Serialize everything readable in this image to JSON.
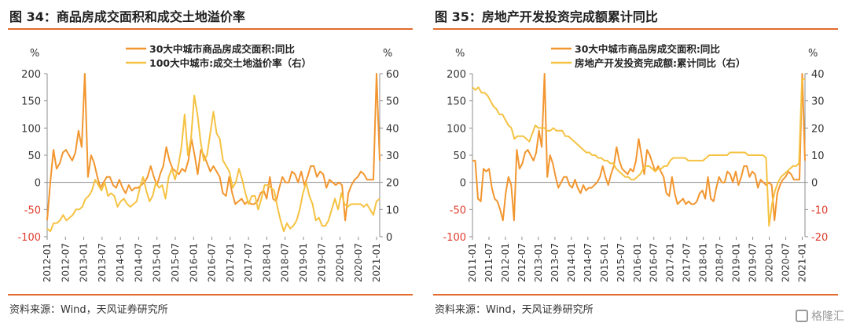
{
  "left": {
    "title": "图 34：商品房成交面积和成交土地溢价率",
    "source": "资料来源：Wind，天风证券研究所"
  },
  "right": {
    "title": "图 35：房地产开发投资完成额累计同比",
    "source": "资料来源：Wind，天风证券研究所"
  },
  "watermark": {
    "text": "格隆汇",
    "icon": "watermark-logo-icon"
  },
  "chart_data": [
    {
      "type": "line",
      "left_unit": "%",
      "right_unit": "%",
      "ylim": [
        -100,
        200
      ],
      "ylim_right": [
        0,
        60
      ],
      "yticks": [
        -100,
        -50,
        0,
        50,
        100,
        150,
        200
      ],
      "yticks_right": [
        0,
        10,
        20,
        30,
        40,
        50,
        60
      ],
      "x_start": "2012-01",
      "x_end": "2021-02",
      "x_tick_labels": [
        "2012-01",
        "2012-07",
        "2013-01",
        "2013-07",
        "2014-01",
        "2014-07",
        "2015-01",
        "2015-07",
        "2016-01",
        "2016-07",
        "2017-01",
        "2017-07",
        "2018-01",
        "2018-07",
        "2019-01",
        "2019-07",
        "2020-01",
        "2020-07",
        "2021-01"
      ],
      "legend_position": "top-center",
      "grid": false,
      "series": [
        {
          "name": "30大中城市商品房成交面积:同比",
          "axis": "left",
          "color": "#f2962f",
          "values": [
            -70,
            0,
            60,
            25,
            35,
            55,
            60,
            50,
            40,
            55,
            95,
            65,
            200,
            10,
            50,
            35,
            10,
            -10,
            0,
            10,
            10,
            -5,
            -10,
            5,
            -10,
            -20,
            -5,
            -15,
            -10,
            -10,
            -5,
            0,
            10,
            30,
            10,
            -5,
            15,
            30,
            65,
            40,
            25,
            20,
            15,
            25,
            20,
            40,
            80,
            50,
            15,
            60,
            50,
            35,
            20,
            30,
            20,
            10,
            -20,
            -25,
            10,
            -20,
            -40,
            -35,
            -30,
            -40,
            -35,
            -40,
            -40,
            -35,
            -20,
            -15,
            -30,
            10,
            -30,
            -35,
            -10,
            10,
            0,
            0,
            20,
            15,
            0,
            20,
            -5,
            10,
            30,
            30,
            10,
            20,
            15,
            -10,
            5,
            0,
            -5,
            0,
            -5,
            -70,
            -20,
            -5,
            5,
            10,
            20,
            15,
            5,
            5,
            5,
            200,
            40
          ]
        },
        {
          "name": "100大中城市:成交土地溢价率（右）",
          "axis": "right",
          "color": "#f5c242",
          "values": [
            3,
            2,
            5,
            5,
            6,
            8,
            6,
            7,
            8,
            10,
            10,
            11,
            14,
            15,
            17,
            21,
            19,
            17,
            20,
            15,
            16,
            15,
            11,
            13,
            14,
            12,
            11,
            12,
            13,
            18,
            22,
            17,
            13,
            15,
            20,
            18,
            19,
            14,
            22,
            25,
            21,
            26,
            33,
            45,
            30,
            36,
            52,
            45,
            35,
            28,
            30,
            38,
            46,
            38,
            36,
            28,
            26,
            24,
            18,
            20,
            25,
            21,
            16,
            12,
            15,
            15,
            10,
            14,
            19,
            19,
            18,
            17,
            11,
            6,
            2,
            5,
            3,
            4,
            6,
            10,
            16,
            20,
            15,
            12,
            6,
            7,
            4,
            4,
            6,
            10,
            14,
            10,
            16,
            12,
            11,
            12,
            12,
            12,
            12,
            11,
            12,
            10,
            8,
            13,
            14
          ]
        }
      ]
    },
    {
      "type": "line",
      "left_unit": "%",
      "right_unit": "%",
      "ylim": [
        -100,
        200
      ],
      "ylim_right": [
        -20,
        40
      ],
      "yticks": [
        -100,
        -50,
        0,
        50,
        100,
        150,
        200
      ],
      "yticks_right": [
        -20,
        -10,
        0,
        10,
        20,
        30,
        40
      ],
      "x_start": "2011-01",
      "x_end": "2021-02",
      "x_tick_labels": [
        "2011-01",
        "2011-07",
        "2012-01",
        "2012-07",
        "2013-01",
        "2013-07",
        "2014-01",
        "2014-07",
        "2015-01",
        "2015-07",
        "2016-01",
        "2016-07",
        "2017-01",
        "2017-07",
        "2018-01",
        "2018-07",
        "2019-01",
        "2019-07",
        "2020-01",
        "2020-07",
        "2021-01"
      ],
      "legend_position": "top-center",
      "grid": false,
      "series": [
        {
          "name": "30大中城市商品房成交面积:同比",
          "axis": "left",
          "color": "#f2962f",
          "values": [
            40,
            40,
            -30,
            -35,
            25,
            20,
            25,
            -10,
            -30,
            -35,
            -50,
            -70,
            -20,
            10,
            -5,
            -70,
            60,
            25,
            35,
            55,
            60,
            50,
            40,
            55,
            95,
            65,
            200,
            10,
            50,
            35,
            10,
            -10,
            0,
            10,
            10,
            -5,
            -10,
            5,
            -10,
            -20,
            -5,
            -15,
            -10,
            -10,
            -5,
            0,
            10,
            30,
            10,
            -5,
            15,
            30,
            65,
            40,
            25,
            20,
            15,
            25,
            20,
            40,
            80,
            50,
            15,
            60,
            50,
            35,
            20,
            30,
            20,
            10,
            -20,
            -25,
            10,
            -20,
            -40,
            -35,
            -30,
            -40,
            -35,
            -40,
            -40,
            -35,
            -20,
            -15,
            -30,
            10,
            -30,
            -35,
            -10,
            10,
            0,
            0,
            20,
            15,
            0,
            20,
            -5,
            10,
            30,
            30,
            10,
            20,
            15,
            -10,
            5,
            0,
            -5,
            0,
            -5,
            -70,
            -20,
            -5,
            5,
            10,
            20,
            15,
            5,
            5,
            5,
            200,
            40
          ]
        },
        {
          "name": "房地产开发投资完成额:累计同比（右）",
          "axis": "right",
          "color": "#f5c242",
          "values": [
            35,
            34,
            35,
            33,
            33,
            32,
            30,
            28,
            27,
            25,
            25,
            23,
            21,
            20,
            16,
            17,
            17,
            17,
            16,
            15,
            18,
            21,
            20,
            20,
            20,
            19,
            19,
            20,
            19,
            19,
            19,
            17,
            17,
            16,
            15,
            14,
            13,
            12,
            11,
            11,
            10,
            10,
            9,
            9,
            8,
            8,
            7,
            7,
            5,
            4,
            3,
            2,
            2,
            1,
            1,
            2,
            3,
            5,
            6,
            6,
            5,
            4,
            5,
            5,
            6,
            6,
            8,
            9,
            9,
            9,
            9,
            9,
            8,
            8,
            8,
            8,
            8,
            8,
            9,
            10,
            10,
            10,
            10,
            10,
            10,
            10,
            11,
            11,
            11,
            11,
            11,
            11,
            10,
            10,
            10,
            10,
            10,
            10,
            9,
            -16,
            -8,
            -3,
            0,
            2,
            3,
            4,
            5,
            6,
            6,
            7,
            38,
            38
          ]
        }
      ]
    }
  ]
}
